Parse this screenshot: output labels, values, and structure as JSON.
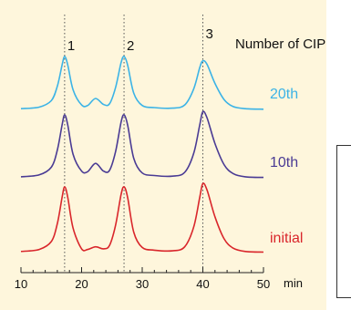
{
  "chart_data": {
    "type": "line",
    "xlabel": "min",
    "xlim": [
      10,
      50
    ],
    "x_ticks": [
      "10",
      "20",
      "30",
      "40",
      "50"
    ],
    "legend_title": "Number of CIP",
    "peak_labels": [
      {
        "label": "1",
        "x": 17.2
      },
      {
        "label": "2",
        "x": 27.0
      },
      {
        "label": "3",
        "x": 40.0
      }
    ],
    "peak_markers_dotted": [
      17.2,
      27.0,
      40.0
    ],
    "series": [
      {
        "name": "20th",
        "color": "#3bb3e6",
        "x": [
          10,
          13,
          15,
          16,
          16.8,
          17.2,
          17.7,
          18.6,
          20,
          21,
          22.3,
          23.6,
          24.6,
          25.6,
          26.5,
          27.0,
          27.6,
          28.6,
          30,
          32,
          35,
          37,
          38.5,
          39.5,
          40.0,
          40.7,
          42,
          43.5,
          45,
          47,
          50
        ],
        "y": [
          0.03,
          0.06,
          0.18,
          0.45,
          0.85,
          1.0,
          0.85,
          0.38,
          0.1,
          0.09,
          0.22,
          0.11,
          0.12,
          0.42,
          0.88,
          1.0,
          0.84,
          0.32,
          0.09,
          0.05,
          0.04,
          0.1,
          0.4,
          0.8,
          0.92,
          0.85,
          0.5,
          0.2,
          0.07,
          0.03,
          0.02
        ]
      },
      {
        "name": "10th",
        "color": "#4a3b94",
        "x": [
          10,
          13,
          15,
          16,
          16.8,
          17.2,
          17.7,
          18.6,
          20,
          21,
          22.3,
          23.6,
          24.6,
          25.6,
          26.5,
          27.0,
          27.6,
          28.6,
          30,
          32,
          35,
          37,
          38.5,
          39.5,
          40.0,
          40.7,
          42,
          43.5,
          45,
          47,
          50
        ],
        "y": [
          0.03,
          0.06,
          0.18,
          0.45,
          0.85,
          1.0,
          0.85,
          0.38,
          0.12,
          0.11,
          0.24,
          0.12,
          0.13,
          0.42,
          0.88,
          1.0,
          0.84,
          0.32,
          0.09,
          0.05,
          0.04,
          0.1,
          0.4,
          0.85,
          1.05,
          0.95,
          0.55,
          0.22,
          0.08,
          0.03,
          0.02
        ]
      },
      {
        "name": "initial",
        "color": "#d9262b",
        "x": [
          10,
          13,
          15,
          16,
          16.8,
          17.2,
          17.7,
          18.6,
          20,
          21,
          22.3,
          23.6,
          24.6,
          25.6,
          26.5,
          27.0,
          27.6,
          28.6,
          30,
          32,
          35,
          37,
          38.5,
          39.5,
          40.0,
          40.7,
          42,
          43.5,
          45,
          47,
          50
        ],
        "y": [
          0.03,
          0.06,
          0.18,
          0.45,
          0.85,
          1.0,
          0.85,
          0.38,
          0.07,
          0.06,
          0.1,
          0.07,
          0.12,
          0.42,
          0.88,
          1.0,
          0.84,
          0.32,
          0.09,
          0.05,
          0.04,
          0.1,
          0.4,
          0.85,
          1.05,
          0.95,
          0.55,
          0.22,
          0.08,
          0.03,
          0.02
        ]
      }
    ]
  }
}
